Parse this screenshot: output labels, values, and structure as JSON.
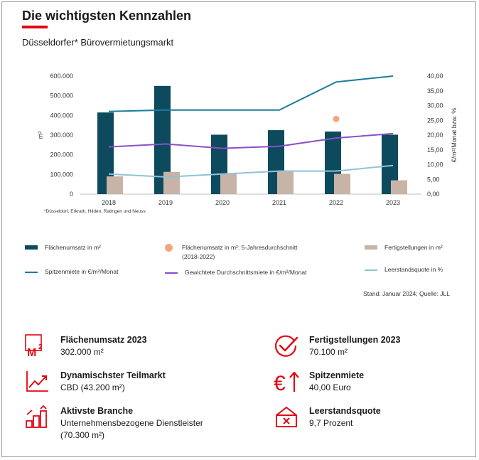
{
  "header": {
    "title": "Die wichtigsten Kennzahlen",
    "subtitle": "Düsseldorfer* Bürovermietungsmarkt",
    "accent_color": "#e30613"
  },
  "chart_data": {
    "type": "bar",
    "categories": [
      "2018",
      "2019",
      "2020",
      "2021",
      "2022",
      "2023"
    ],
    "ylabel": "m²",
    "y2label": "€/m²/Monat bzw. %",
    "ylim": [
      0,
      600000
    ],
    "y2lim": [
      0,
      40
    ],
    "y_ticks": [
      "0",
      "100.000",
      "200.000",
      "300.000",
      "400.000",
      "500.000",
      "600.000"
    ],
    "y2_ticks": [
      "0,00",
      "5,00",
      "10,00",
      "15,00",
      "20,00",
      "25,00",
      "30,00",
      "35,00",
      "40,00"
    ],
    "footnote": "*Düsseldorf, Erkrath, Hilden, Ratingen und Neuss",
    "series": [
      {
        "name": "Flächenumsatz in m²",
        "kind": "bar",
        "axis": "left",
        "color": "#0d4a5e",
        "values": [
          415000,
          550000,
          302000,
          325000,
          318000,
          302000
        ]
      },
      {
        "name": "Fertigstellungen in m²",
        "kind": "bar",
        "axis": "left",
        "color": "#c8b4a6",
        "values": [
          90000,
          113000,
          104000,
          115000,
          103000,
          70100
        ]
      },
      {
        "name": "Flächenumsatz in m²: 5-Jahresdurchschnitt\n(2018-2022)",
        "kind": "point",
        "axis": "left",
        "color": "#f3a77a",
        "category": "2022",
        "value": 382000
      },
      {
        "name": "Spitzenmiete in €/m²/Monat",
        "kind": "line",
        "axis": "right",
        "color": "#1b7c9c",
        "values": [
          28.0,
          28.5,
          28.5,
          28.5,
          38.0,
          40.0
        ]
      },
      {
        "name": "Gewichtete Durchschnittsmiete in €/m²/Monat",
        "kind": "line",
        "axis": "right",
        "color": "#8b4fc7",
        "values": [
          16.0,
          17.0,
          15.5,
          16.2,
          19.0,
          20.5
        ]
      },
      {
        "name": "Leerstandsquote in %",
        "kind": "line",
        "axis": "right",
        "color": "#8fc3d6",
        "values": [
          6.8,
          5.8,
          6.8,
          7.8,
          7.8,
          9.7
        ]
      }
    ]
  },
  "source": "Stand: Januar 2024; Quelle: JLL",
  "kpis": [
    {
      "icon": "m2-icon",
      "title": "Flächenumsatz 2023",
      "value": "302.000 m²"
    },
    {
      "icon": "checkmark-circle-icon",
      "title": "Fertigstellungen 2023",
      "value": "70.100 m²"
    },
    {
      "icon": "trend-up-icon",
      "title": "Dynamischster Teilmarkt",
      "value": "CBD (43.200 m²)"
    },
    {
      "icon": "euro-arrow-up-icon",
      "title": "Spitzenmiete",
      "value": "40,00 Euro"
    },
    {
      "icon": "bar-steps-icon",
      "title": "Aktivste Branche",
      "value": "Unternehmensbezogene Dienstleister\n(70.300 m²)"
    },
    {
      "icon": "empty-box-icon",
      "title": "Leerstandsquote",
      "value": "9,7 Prozent"
    }
  ]
}
